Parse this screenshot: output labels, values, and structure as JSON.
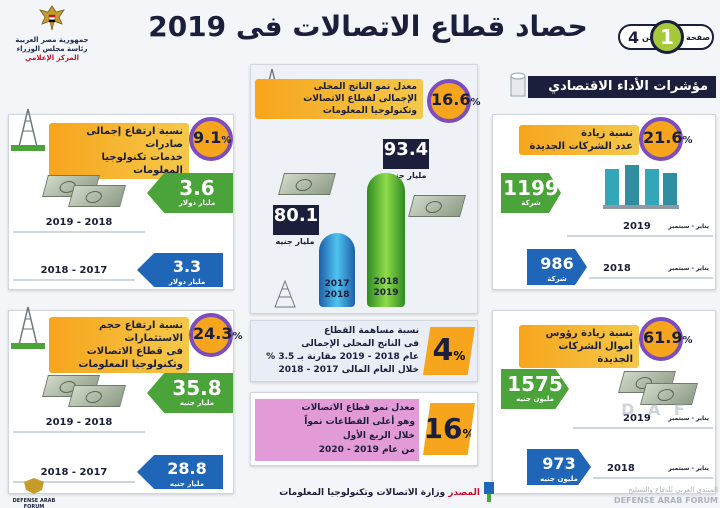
{
  "header": {
    "title": "حصاد قطاع الاتصالات فى 2019",
    "logo_lines": [
      "جمهورية مصر العربية",
      "رئاسة مجلس الوزراء",
      "المركز الإعلامي"
    ],
    "page_label": "صفحة",
    "page_number": "1",
    "page_of": "من",
    "page_total": "4"
  },
  "econ_header": "مؤشرات الأداء الاقتصادي",
  "companies": {
    "pct": "21.6",
    "title_line1": "نسبة زيادة",
    "title_line2": "عدد الشركات الجديدة",
    "current_value": "1199",
    "current_unit": "شركة",
    "current_period": "يناير - سبتمبر",
    "current_year": "2019",
    "prev_value": "986",
    "prev_unit": "شركة",
    "prev_period": "يناير - سبتمبر",
    "prev_year": "2018"
  },
  "capital": {
    "pct": "61.9",
    "title_line1": "نسبة زيادة رؤوس",
    "title_line2": "أموال الشركات الجديدة",
    "current_value": "1575",
    "current_unit": "مليون جنيه",
    "current_period": "يناير - سبتمبر",
    "current_year": "2019",
    "prev_value": "973",
    "prev_unit": "مليون جنيه",
    "prev_period": "يناير - سبتمبر",
    "prev_year": "2018"
  },
  "exports": {
    "pct": "9.1",
    "title_line1": "نسبة ارتفاع إجمالى صادرات",
    "title_line2": "خدمات تكنولوجيا المعلومات",
    "current_value": "3.6",
    "current_unit": "مليار دولار",
    "current_year": "2019 - 2018",
    "prev_value": "3.3",
    "prev_unit": "مليار دولار",
    "prev_year": "2018 - 2017"
  },
  "investments": {
    "pct": "24.3",
    "title_line1": "نسبة ارتفاع حجم الاستثمارات",
    "title_line2": "فى قطاع الاتصالات",
    "title_line3": "وتكنولوجيا المعلومات",
    "current_value": "35.8",
    "current_unit": "مليار جنيه",
    "current_year": "2019 - 2018",
    "prev_value": "28.8",
    "prev_unit": "مليار جنيه",
    "prev_year": "2018 - 2017"
  },
  "gdp_growth": {
    "pct": "16.6",
    "text_line1": "معدل نمو الناتج المحلى",
    "text_line2": "الإجمالى لقطاع الاتصالات",
    "text_line3": "وتكنولوجيا المعلومات",
    "bar_new_value": "93.4",
    "bar_new_unit": "مليار جنيه",
    "bar_new_years": [
      "2018",
      "2019"
    ],
    "bar_old_value": "80.1",
    "bar_old_unit": "مليار جنيه",
    "bar_old_years": [
      "2017",
      "2018"
    ]
  },
  "contribution": {
    "pct": "4",
    "line1": "نسبة مساهمة القطاع",
    "line2": "فى الناتج المحلى الإجمالى",
    "line3": "عام 2018 - 2019 مقارنة بـ 3.5 %",
    "line4": "خلال العام المالى 2017 - 2018"
  },
  "sector_growth": {
    "pct": "16",
    "line1": "معدل نمو قطاع الاتصالات",
    "line2": "وهو أعلى القطاعات نمواً",
    "line3": "خلال الربع الأول",
    "line4": "من عام 2019 - 2020"
  },
  "source": {
    "label": "المصدر",
    "text": "وزارة الاتصالات وتكنولوجيا المعلومات"
  },
  "watermarks": {
    "left": "DEFENSE ARAB FORUM",
    "right": "DEFENSE ARAB FORUM",
    "right_ar": "المنتدى العربي للدفاع والتسليح",
    "dafs": "D A F"
  },
  "colors": {
    "green": "#4aa43a",
    "blue": "#1f66b8",
    "orange": "#f7a51c",
    "purple": "#7c4dbd",
    "navy": "#1b1f3b"
  }
}
